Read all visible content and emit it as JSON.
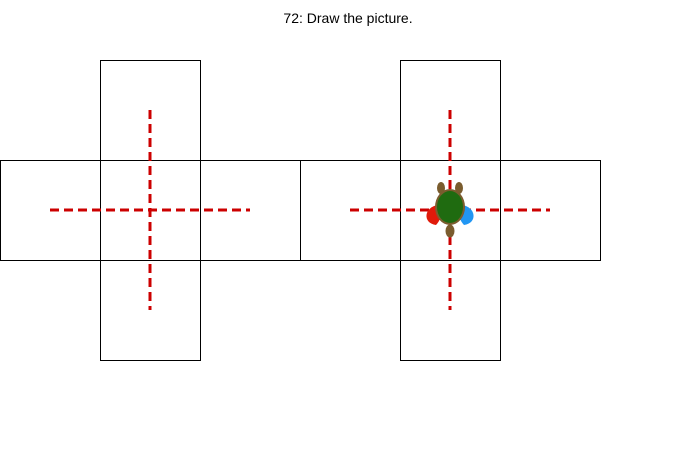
{
  "task": {
    "title": "72: Draw the picture."
  },
  "colors": {
    "outline": "#000000",
    "axis_dash": "#cc0000",
    "turtle_shell": "#1f6b10",
    "turtle_body": "#7a5c2e",
    "turtle_left_flipper": "#e01a0a",
    "turtle_right_flipper": "#2196f3"
  },
  "icons": {
    "turtle": "turtle-icon"
  }
}
